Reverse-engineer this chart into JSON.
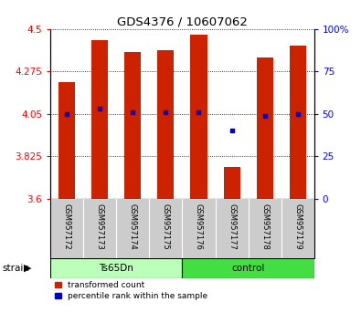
{
  "title": "GDS4376 / 10607062",
  "samples": [
    "GSM957172",
    "GSM957173",
    "GSM957174",
    "GSM957175",
    "GSM957176",
    "GSM957177",
    "GSM957178",
    "GSM957179"
  ],
  "red_values": [
    4.22,
    4.44,
    4.38,
    4.39,
    4.47,
    3.77,
    4.35,
    4.41
  ],
  "blue_values": [
    4.05,
    4.08,
    4.06,
    4.06,
    4.06,
    3.96,
    4.04,
    4.05
  ],
  "ylim": [
    3.6,
    4.5
  ],
  "yticks": [
    3.6,
    3.825,
    4.05,
    4.275,
    4.5
  ],
  "ytick_labels": [
    "3.6",
    "3.825",
    "4.05",
    "4.275",
    "4.5"
  ],
  "y2ticks": [
    0,
    25,
    50,
    75,
    100
  ],
  "y2tick_labels": [
    "0",
    "25",
    "50",
    "75",
    "100%"
  ],
  "y2lim": [
    0,
    100
  ],
  "bar_color": "#cc2200",
  "dot_color": "#0000cc",
  "bar_width": 0.5,
  "background_color": "#ffffff",
  "label_area_color": "#cccccc",
  "ts65dn_color": "#bbffbb",
  "control_color": "#44dd44",
  "legend_labels": [
    "transformed count",
    "percentile rank within the sample"
  ]
}
